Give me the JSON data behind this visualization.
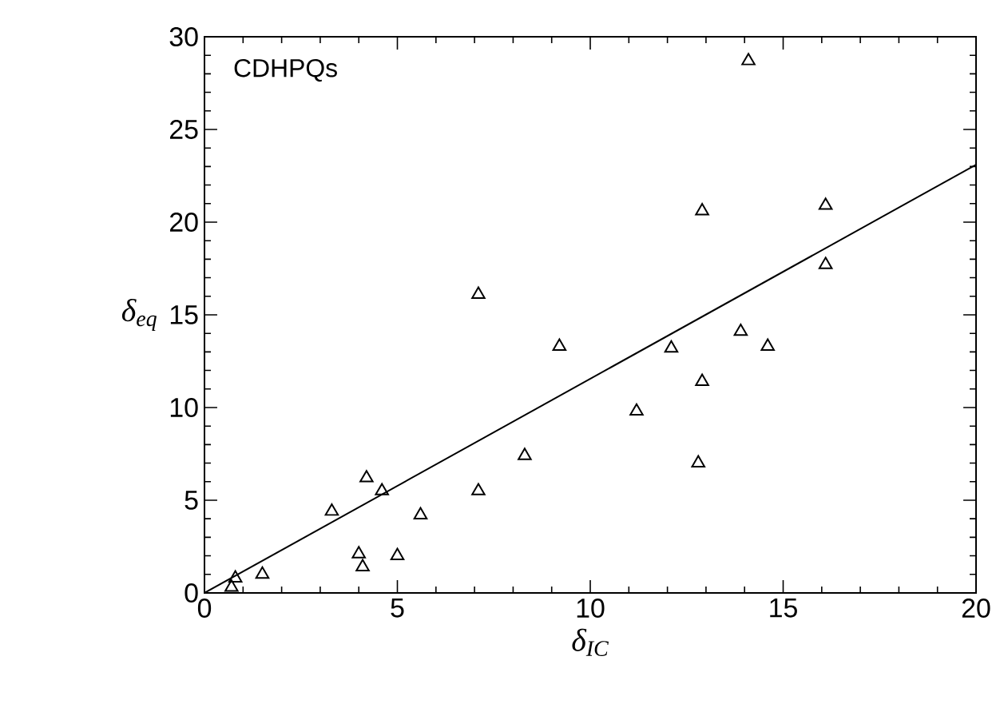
{
  "chart_data": {
    "type": "scatter",
    "xlabel": "δ$_{IC}$",
    "ylabel": "δ$_{eq}$",
    "annotations": [
      "CDHPQs"
    ],
    "xlim": [
      0,
      20
    ],
    "ylim": [
      0,
      30
    ],
    "xticks": [
      0,
      5,
      10,
      15,
      20
    ],
    "yticks": [
      0,
      5,
      10,
      15,
      20,
      25,
      30
    ],
    "grid": false,
    "series": [
      {
        "marker": "triangle",
        "color": "#000000",
        "x": [
          0.7,
          0.8,
          1.5,
          3.3,
          4.0,
          4.1,
          4.2,
          4.6,
          5.0,
          5.6,
          7.1,
          7.1,
          8.3,
          9.2,
          11.2,
          12.1,
          12.8,
          12.9,
          12.9,
          13.9,
          14.1,
          14.6,
          16.1,
          16.1
        ],
        "values": [
          0.3,
          0.8,
          1.0,
          4.4,
          2.1,
          1.4,
          6.2,
          5.5,
          2.0,
          4.2,
          5.5,
          16.1,
          7.4,
          13.3,
          9.8,
          13.2,
          7.0,
          11.4,
          20.6,
          14.1,
          28.7,
          13.3,
          17.7,
          20.9
        ]
      },
      {
        "type": "line",
        "marker": "none",
        "line_style": "solid",
        "color": "#000000",
        "x": [
          0,
          20
        ],
        "values": [
          0,
          23.1
        ]
      }
    ]
  }
}
